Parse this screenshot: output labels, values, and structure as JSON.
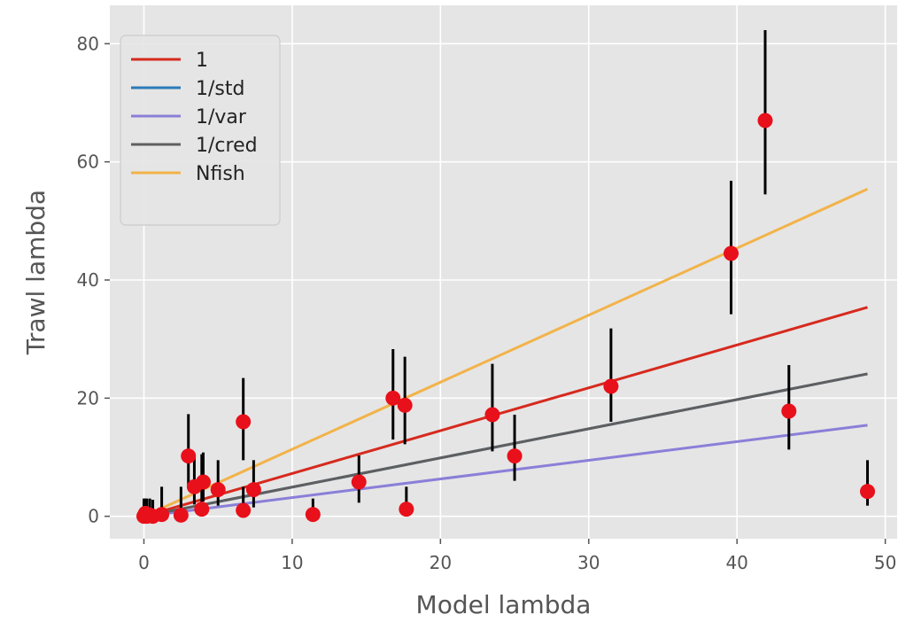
{
  "chart_data": {
    "type": "scatter",
    "title": "",
    "xlabel": "Model lambda",
    "ylabel": "Trawl lambda",
    "xlim": [
      -2.3,
      50.8
    ],
    "ylim": [
      -3.8,
      86.5
    ],
    "xticks": [
      0,
      10,
      20,
      30,
      40,
      50
    ],
    "yticks": [
      0,
      20,
      40,
      60,
      80
    ],
    "grid": true,
    "legend_position": "upper left",
    "colors": {
      "background": "#e5e5e5",
      "grid": "#ffffff",
      "points": "#e8101a",
      "errorbars": "#000000",
      "text": "#555555"
    },
    "points": [
      {
        "x": 0.0,
        "y": 0.0,
        "ylow": 0.0,
        "yhigh": 3.0
      },
      {
        "x": 0.1,
        "y": 0.5,
        "ylow": 0.0,
        "yhigh": 3.0
      },
      {
        "x": 0.2,
        "y": 0.0,
        "ylow": 0.0,
        "yhigh": 3.0
      },
      {
        "x": 0.4,
        "y": 0.2,
        "ylow": 0.0,
        "yhigh": 3.0
      },
      {
        "x": 0.6,
        "y": 0.0,
        "ylow": 0.0,
        "yhigh": 2.8
      },
      {
        "x": 1.2,
        "y": 0.3,
        "ylow": 0.0,
        "yhigh": 5.0
      },
      {
        "x": 2.5,
        "y": 0.2,
        "ylow": 0.0,
        "yhigh": 5.0
      },
      {
        "x": 3.0,
        "y": 10.2,
        "ylow": 5.0,
        "yhigh": 17.3
      },
      {
        "x": 3.4,
        "y": 5.0,
        "ylow": 2.0,
        "yhigh": 10.0
      },
      {
        "x": 3.9,
        "y": 1.2,
        "ylow": 0.0,
        "yhigh": 10.5
      },
      {
        "x": 4.0,
        "y": 5.8,
        "ylow": 2.5,
        "yhigh": 10.8
      },
      {
        "x": 5.0,
        "y": 4.5,
        "ylow": 1.8,
        "yhigh": 9.5
      },
      {
        "x": 6.7,
        "y": 16.0,
        "ylow": 9.5,
        "yhigh": 23.4
      },
      {
        "x": 6.7,
        "y": 1.0,
        "ylow": 0.0,
        "yhigh": 5.0
      },
      {
        "x": 7.4,
        "y": 4.5,
        "ylow": 1.5,
        "yhigh": 9.5
      },
      {
        "x": 11.4,
        "y": 0.3,
        "ylow": 0.0,
        "yhigh": 3.0
      },
      {
        "x": 14.5,
        "y": 5.8,
        "ylow": 2.3,
        "yhigh": 10.3
      },
      {
        "x": 16.8,
        "y": 20.0,
        "ylow": 13.0,
        "yhigh": 28.3
      },
      {
        "x": 17.6,
        "y": 18.8,
        "ylow": 12.2,
        "yhigh": 27.0
      },
      {
        "x": 17.7,
        "y": 1.2,
        "ylow": 0.0,
        "yhigh": 5.0
      },
      {
        "x": 23.5,
        "y": 17.2,
        "ylow": 11.0,
        "yhigh": 25.8
      },
      {
        "x": 25.0,
        "y": 10.2,
        "ylow": 6.0,
        "yhigh": 17.2
      },
      {
        "x": 31.5,
        "y": 22.0,
        "ylow": 16.0,
        "yhigh": 31.8
      },
      {
        "x": 39.6,
        "y": 44.5,
        "ylow": 34.2,
        "yhigh": 56.8
      },
      {
        "x": 41.9,
        "y": 67.0,
        "ylow": 54.5,
        "yhigh": 82.3
      },
      {
        "x": 43.5,
        "y": 17.8,
        "ylow": 11.3,
        "yhigh": 25.6
      },
      {
        "x": 48.8,
        "y": 4.2,
        "ylow": 1.8,
        "yhigh": 9.5
      }
    ],
    "fit_lines": [
      {
        "name": "1",
        "color": "#d62a1e",
        "slope": 0.725
      },
      {
        "name": "1/std",
        "color": "#2a7ab8",
        "slope": 0.494
      },
      {
        "name": "1/var",
        "color": "#8a7fd8",
        "slope": 0.316
      },
      {
        "name": "1/cred",
        "color": "#5f5f5f",
        "slope": 0.494
      },
      {
        "name": "Nfish",
        "color": "#f2b34a",
        "slope": 1.135
      }
    ],
    "fit_x_range": [
      0,
      48.8
    ]
  }
}
